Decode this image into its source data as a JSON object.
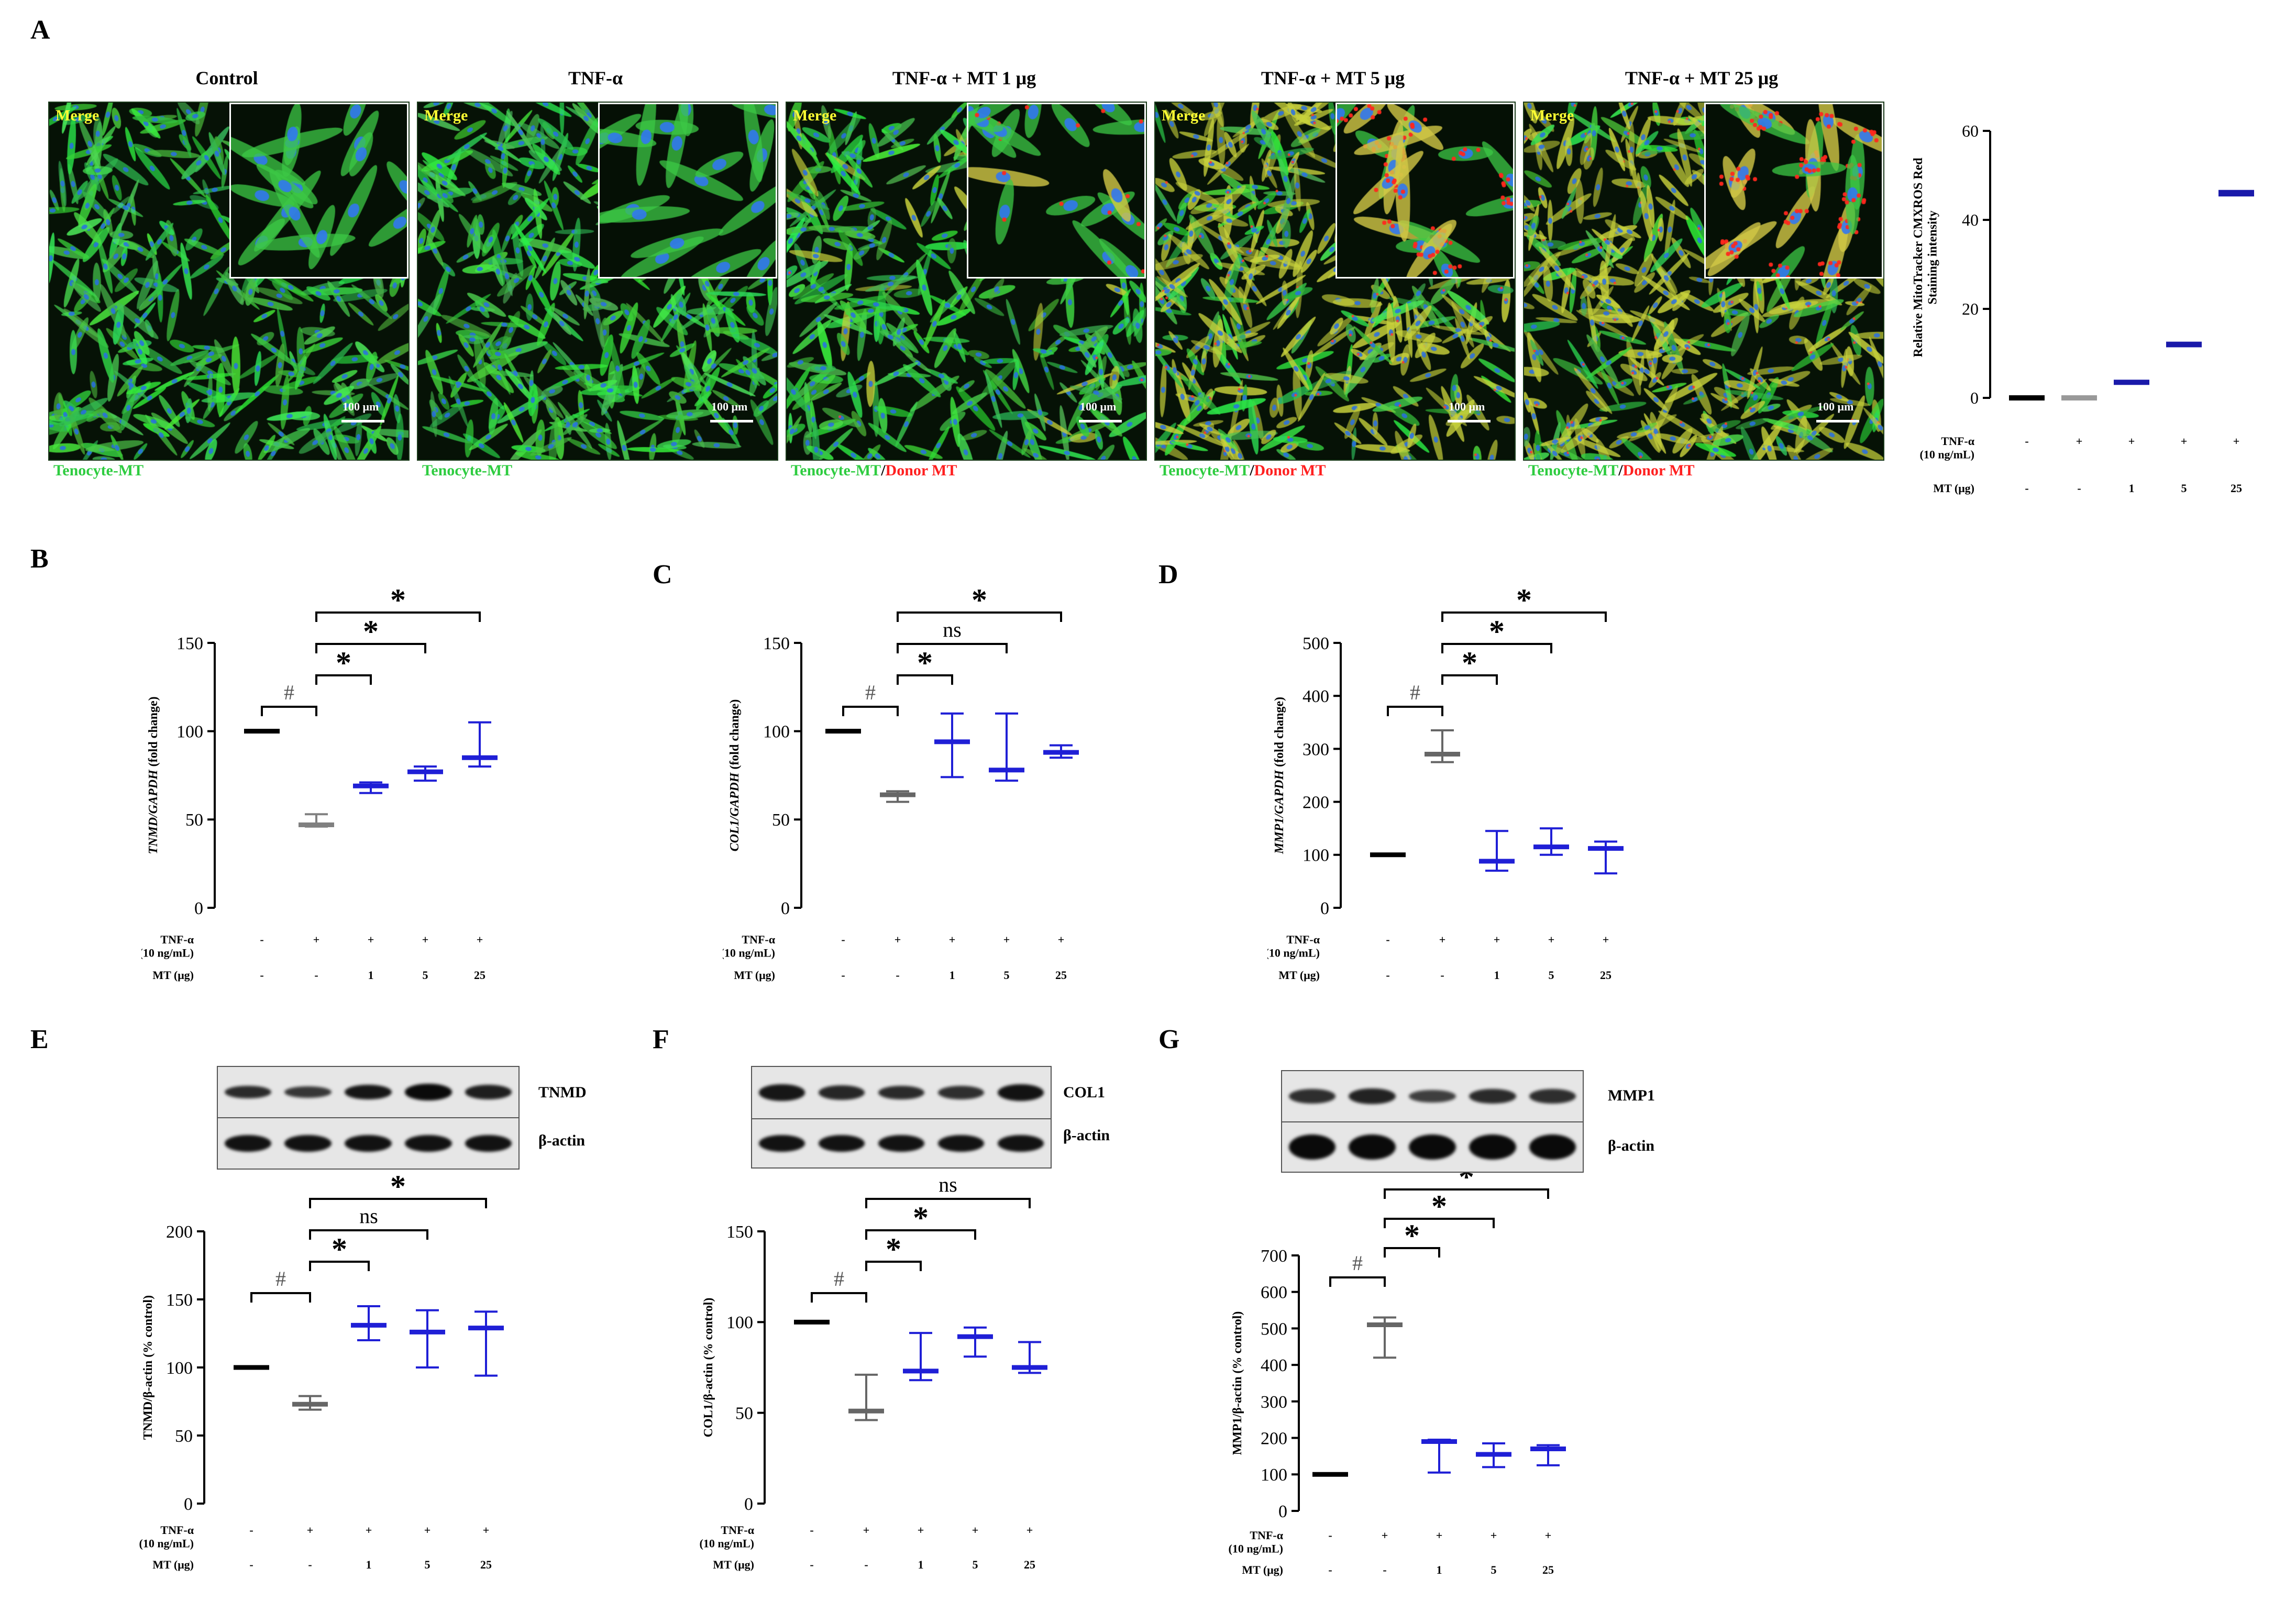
{
  "panel_letters": {
    "A": "A",
    "B": "B",
    "C": "C",
    "D": "D",
    "E": "E",
    "F": "F",
    "G": "G"
  },
  "microscopy": {
    "merge_label": "Merge",
    "scalebar_label": "100 μm",
    "panels": [
      {
        "title": "Control",
        "caption_green": "Tenocyte-MT",
        "caption_red": "",
        "red_level": 0.0,
        "yellow_level": 0.0,
        "density": 0.5
      },
      {
        "title": "TNF-α",
        "caption_green": "Tenocyte-MT",
        "caption_red": "",
        "red_level": 0.0,
        "yellow_level": 0.0,
        "density": 0.55
      },
      {
        "title": "TNF-α + MT 1 μg",
        "caption_green": "Tenocyte-MT",
        "caption_slash": "/",
        "caption_red": "Donor MT",
        "red_level": 0.1,
        "yellow_level": 0.05,
        "density": 0.5
      },
      {
        "title": "TNF-α + MT 5 μg",
        "caption_green": "Tenocyte-MT",
        "caption_slash": "/",
        "caption_red": "Donor MT",
        "red_level": 0.5,
        "yellow_level": 0.6,
        "density": 0.7
      },
      {
        "title": "TNF-α + MT 25 μg",
        "caption_green": "Tenocyte-MT",
        "caption_slash": "/",
        "caption_red": "Donor MT",
        "red_level": 0.7,
        "yellow_level": 0.7,
        "density": 0.75
      }
    ],
    "colors": {
      "green": "#2ecc40",
      "red": "#ff2020",
      "yellow": "#ffff33",
      "white": "#ffffff"
    }
  },
  "condition_rows": {
    "tnf_label": "TNF-α",
    "tnf_sub": "(10 ng/mL)",
    "mt_label": "MT (μg)",
    "tnf_values": [
      "-",
      "+",
      "+",
      "+",
      "+"
    ],
    "mt_values": [
      "-",
      "-",
      "1",
      "5",
      "25"
    ]
  },
  "western_blots": [
    {
      "target": "TNMD",
      "loading": "β-actin"
    },
    {
      "target": "COL1",
      "loading": "β-actin"
    },
    {
      "target": "MMP1",
      "loading": "β-actin"
    }
  ],
  "chart_data": [
    {
      "id": "A",
      "type": "scatter",
      "ylabel": "Relative MitoTracker CMXROS Red Staining intensity",
      "ylim": [
        0,
        60
      ],
      "yticks": [
        0,
        20,
        40,
        60
      ],
      "groups": [
        {
          "median": 0,
          "low": 0,
          "high": 0,
          "color": "#000000"
        },
        {
          "median": 0,
          "low": 0,
          "high": 0,
          "color": "#999999"
        },
        {
          "median": 3.5,
          "low": 3.2,
          "high": 3.8,
          "color": "#1a1aaa"
        },
        {
          "median": 12,
          "low": 11.6,
          "high": 12.4,
          "color": "#1a1aaa"
        },
        {
          "median": 46,
          "low": 45.5,
          "high": 46.5,
          "color": "#1a1aaa"
        }
      ],
      "sig": []
    },
    {
      "id": "B",
      "type": "scatter",
      "ylabel_italic": "TNMD/GAPDH",
      "ylabel_rest": " (fold change)",
      "ylim": [
        0,
        150
      ],
      "yticks": [
        0,
        50,
        100,
        150
      ],
      "groups": [
        {
          "median": 100,
          "low": 100,
          "high": 100,
          "color": "#000000"
        },
        {
          "median": 47,
          "low": 46,
          "high": 53,
          "color": "#808080"
        },
        {
          "median": 69,
          "low": 65,
          "high": 71,
          "color": "#1f1fd6"
        },
        {
          "median": 77,
          "low": 72,
          "high": 80,
          "color": "#1f1fd6"
        },
        {
          "median": 85,
          "low": 80,
          "high": 105,
          "color": "#1f1fd6"
        }
      ],
      "sig": [
        {
          "from": 0,
          "to": 1,
          "label": "#",
          "level": 0
        },
        {
          "from": 1,
          "to": 2,
          "label": "*",
          "level": 1
        },
        {
          "from": 1,
          "to": 3,
          "label": "*",
          "level": 2
        },
        {
          "from": 1,
          "to": 4,
          "label": "*",
          "level": 3
        }
      ]
    },
    {
      "id": "C",
      "type": "scatter",
      "ylabel_italic": "COL1/GAPDH",
      "ylabel_rest": " (fold change)",
      "ylim": [
        0,
        150
      ],
      "yticks": [
        0,
        50,
        100,
        150
      ],
      "groups": [
        {
          "median": 100,
          "low": 100,
          "high": 100,
          "color": "#000000"
        },
        {
          "median": 64,
          "low": 60,
          "high": 66,
          "color": "#666666"
        },
        {
          "median": 94,
          "low": 74,
          "high": 110,
          "color": "#1f1fd6"
        },
        {
          "median": 78,
          "low": 72,
          "high": 110,
          "color": "#1f1fd6"
        },
        {
          "median": 88,
          "low": 85,
          "high": 92,
          "color": "#1f1fd6"
        }
      ],
      "sig": [
        {
          "from": 0,
          "to": 1,
          "label": "#",
          "level": 0
        },
        {
          "from": 1,
          "to": 2,
          "label": "*",
          "level": 1
        },
        {
          "from": 1,
          "to": 3,
          "label": "ns",
          "level": 2
        },
        {
          "from": 1,
          "to": 4,
          "label": "*",
          "level": 3
        }
      ]
    },
    {
      "id": "D",
      "type": "scatter",
      "ylabel_italic": "MMP1/GAPDH",
      "ylabel_rest": " (fold change)",
      "ylim": [
        0,
        500
      ],
      "yticks": [
        0,
        100,
        200,
        300,
        400,
        500
      ],
      "groups": [
        {
          "median": 100,
          "low": 100,
          "high": 100,
          "color": "#000000"
        },
        {
          "median": 290,
          "low": 275,
          "high": 335,
          "color": "#666666"
        },
        {
          "median": 88,
          "low": 70,
          "high": 145,
          "color": "#1f1fd6"
        },
        {
          "median": 115,
          "low": 100,
          "high": 150,
          "color": "#1f1fd6"
        },
        {
          "median": 112,
          "low": 65,
          "high": 125,
          "color": "#1f1fd6"
        }
      ],
      "sig": [
        {
          "from": 0,
          "to": 1,
          "label": "#",
          "level": 0
        },
        {
          "from": 1,
          "to": 2,
          "label": "*",
          "level": 1
        },
        {
          "from": 1,
          "to": 3,
          "label": "*",
          "level": 2
        },
        {
          "from": 1,
          "to": 4,
          "label": "*",
          "level": 3
        }
      ]
    },
    {
      "id": "E",
      "type": "scatter",
      "ylabel": "TNMD/β-actin (% control)",
      "ylim": [
        0,
        200
      ],
      "yticks": [
        0,
        50,
        100,
        150,
        200
      ],
      "groups": [
        {
          "median": 100,
          "low": 100,
          "high": 100,
          "color": "#000000"
        },
        {
          "median": 73,
          "low": 69,
          "high": 79,
          "color": "#666666"
        },
        {
          "median": 131,
          "low": 120,
          "high": 145,
          "color": "#1f1fd6"
        },
        {
          "median": 126,
          "low": 100,
          "high": 142,
          "color": "#1f1fd6"
        },
        {
          "median": 129,
          "low": 94,
          "high": 141,
          "color": "#1f1fd6"
        }
      ],
      "sig": [
        {
          "from": 0,
          "to": 1,
          "label": "#",
          "level": 0
        },
        {
          "from": 1,
          "to": 2,
          "label": "*",
          "level": 1
        },
        {
          "from": 1,
          "to": 3,
          "label": "ns",
          "level": 2
        },
        {
          "from": 1,
          "to": 4,
          "label": "*",
          "level": 3
        }
      ]
    },
    {
      "id": "F",
      "type": "scatter",
      "ylabel": "COL1/β-actin (% control)",
      "ylim": [
        0,
        150
      ],
      "yticks": [
        0,
        50,
        100,
        150
      ],
      "groups": [
        {
          "median": 100,
          "low": 100,
          "high": 100,
          "color": "#000000"
        },
        {
          "median": 51,
          "low": 46,
          "high": 71,
          "color": "#666666"
        },
        {
          "median": 73,
          "low": 68,
          "high": 94,
          "color": "#1f1fd6"
        },
        {
          "median": 92,
          "low": 81,
          "high": 97,
          "color": "#1f1fd6"
        },
        {
          "median": 75,
          "low": 72,
          "high": 89,
          "color": "#1f1fd6"
        }
      ],
      "sig": [
        {
          "from": 0,
          "to": 1,
          "label": "#",
          "level": 0
        },
        {
          "from": 1,
          "to": 2,
          "label": "*",
          "level": 1
        },
        {
          "from": 1,
          "to": 3,
          "label": "*",
          "level": 2
        },
        {
          "from": 1,
          "to": 4,
          "label": "ns",
          "level": 3
        }
      ]
    },
    {
      "id": "G",
      "type": "scatter",
      "ylabel": "MMP1/β-actin (% control)",
      "ylim": [
        0,
        700
      ],
      "yticks": [
        0,
        100,
        200,
        300,
        400,
        500,
        600,
        700
      ],
      "groups": [
        {
          "median": 100,
          "low": 100,
          "high": 100,
          "color": "#000000"
        },
        {
          "median": 510,
          "low": 420,
          "high": 530,
          "color": "#666666"
        },
        {
          "median": 190,
          "low": 105,
          "high": 195,
          "color": "#1f1fd6"
        },
        {
          "median": 155,
          "low": 120,
          "high": 185,
          "color": "#1f1fd6"
        },
        {
          "median": 170,
          "low": 125,
          "high": 180,
          "color": "#1f1fd6"
        }
      ],
      "sig": [
        {
          "from": 0,
          "to": 1,
          "label": "#",
          "level": 0
        },
        {
          "from": 1,
          "to": 2,
          "label": "*",
          "level": 1
        },
        {
          "from": 1,
          "to": 3,
          "label": "*",
          "level": 2
        },
        {
          "from": 1,
          "to": 4,
          "label": "*",
          "level": 3
        }
      ]
    }
  ]
}
